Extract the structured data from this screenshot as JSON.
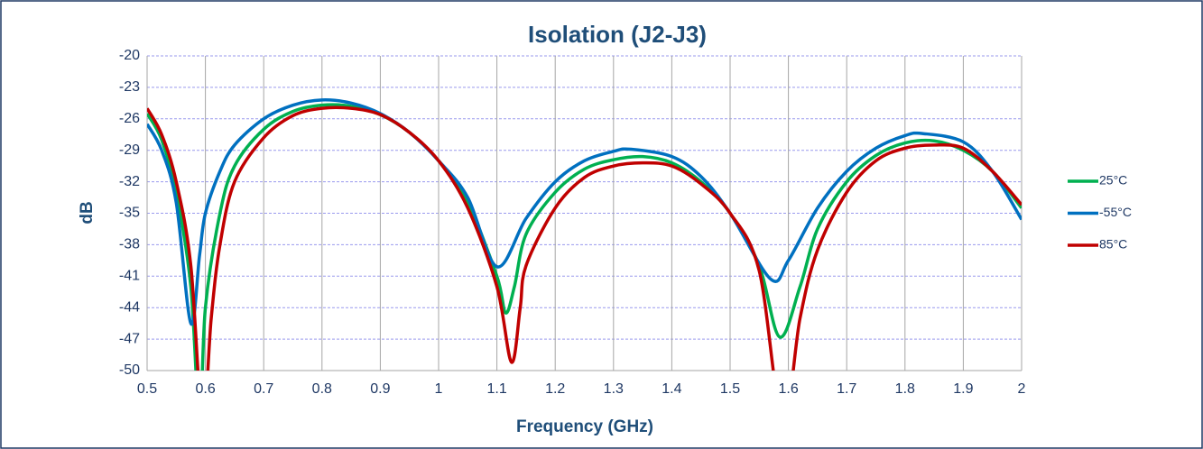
{
  "chart_data": {
    "type": "line",
    "title": "Isolation (J2-J3)",
    "x_label": "Frequency (GHz)",
    "y_label": "dB",
    "xlim": [
      0.5,
      2
    ],
    "xticks": [
      0.5,
      0.6,
      0.7,
      0.8,
      0.9,
      1,
      1.1,
      1.2,
      1.3,
      1.4,
      1.5,
      1.6,
      1.7,
      1.8,
      1.9,
      2
    ],
    "ylim": [
      -50,
      -20
    ],
    "yticks": [
      -20,
      -23,
      -26,
      -29,
      -32,
      -35,
      -38,
      -41,
      -44,
      -47,
      -50
    ],
    "grid": true,
    "legend": "right",
    "series": [
      {
        "name": "25°C",
        "color": "#00b050",
        "x": [
          0.5,
          0.525,
          0.55,
          0.575,
          0.59,
          0.6,
          0.625,
          0.65,
          0.7,
          0.75,
          0.8,
          0.85,
          0.9,
          0.95,
          1.0,
          1.05,
          1.1,
          1.115,
          1.13,
          1.15,
          1.2,
          1.25,
          1.3,
          1.35,
          1.4,
          1.45,
          1.5,
          1.55,
          1.585,
          1.62,
          1.65,
          1.7,
          1.75,
          1.8,
          1.85,
          1.9,
          1.95,
          2.0
        ],
        "values": [
          -25.5,
          -28,
          -33,
          -42,
          -55,
          -44,
          -35,
          -30.5,
          -27,
          -25.3,
          -24.7,
          -24.8,
          -25.6,
          -27.3,
          -30,
          -34,
          -41,
          -44.5,
          -42,
          -37,
          -33,
          -30.8,
          -29.9,
          -29.6,
          -30.2,
          -32,
          -35,
          -40,
          -46.8,
          -42,
          -36.5,
          -32,
          -29.5,
          -28.3,
          -28.1,
          -29,
          -31,
          -34.5
        ]
      },
      {
        "name": "-55°C",
        "color": "#0070c0",
        "x": [
          0.5,
          0.525,
          0.55,
          0.575,
          0.59,
          0.6,
          0.625,
          0.65,
          0.7,
          0.75,
          0.8,
          0.85,
          0.9,
          0.95,
          1.0,
          1.05,
          1.1,
          1.15,
          1.2,
          1.25,
          1.3,
          1.33,
          1.4,
          1.45,
          1.5,
          1.57,
          1.6,
          1.65,
          1.7,
          1.75,
          1.8,
          1.83,
          1.9,
          1.95,
          2.0
        ],
        "values": [
          -26.5,
          -29,
          -34,
          -45.5,
          -39,
          -35,
          -31,
          -28.5,
          -26,
          -24.7,
          -24.2,
          -24.5,
          -25.5,
          -27.3,
          -30,
          -33.5,
          -40.1,
          -35.5,
          -32,
          -30,
          -29.1,
          -28.9,
          -29.6,
          -31.5,
          -35,
          -41.3,
          -39.5,
          -34.5,
          -31,
          -28.8,
          -27.6,
          -27.4,
          -28.2,
          -31,
          -35.6
        ]
      },
      {
        "name": "85°C",
        "color": "#c00000",
        "x": [
          0.5,
          0.525,
          0.55,
          0.575,
          0.595,
          0.61,
          0.625,
          0.65,
          0.7,
          0.75,
          0.8,
          0.85,
          0.9,
          0.95,
          1.0,
          1.05,
          1.1,
          1.125,
          1.14,
          1.15,
          1.2,
          1.25,
          1.3,
          1.35,
          1.4,
          1.45,
          1.5,
          1.55,
          1.59,
          1.62,
          1.65,
          1.7,
          1.75,
          1.8,
          1.85,
          1.9,
          1.95,
          2.0
        ],
        "values": [
          -25,
          -27.5,
          -32,
          -40,
          -55,
          -45,
          -38,
          -32,
          -27.8,
          -25.7,
          -25,
          -25,
          -25.6,
          -27.3,
          -30,
          -34.5,
          -42,
          -49.2,
          -44,
          -40,
          -34.5,
          -31.6,
          -30.5,
          -30.2,
          -30.5,
          -32.2,
          -35,
          -40.5,
          -55,
          -45,
          -38.5,
          -33,
          -30,
          -28.8,
          -28.5,
          -28.8,
          -31,
          -34.2
        ]
      }
    ]
  }
}
